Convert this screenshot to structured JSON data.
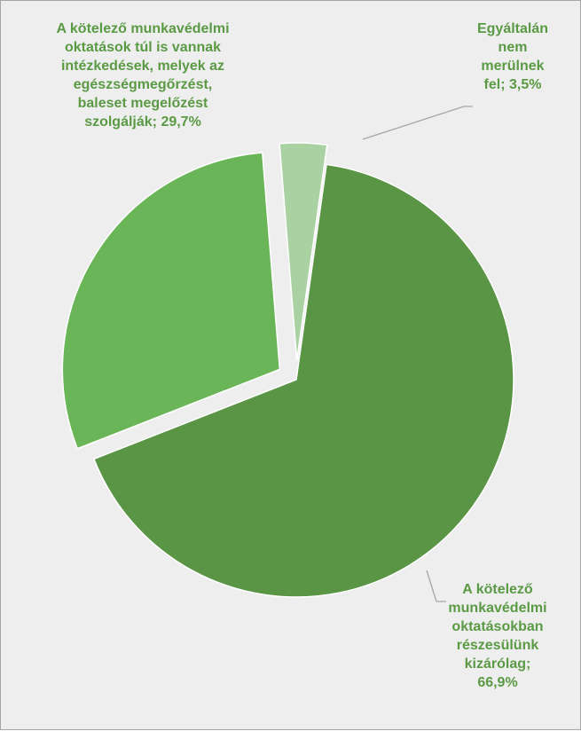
{
  "chart_data": {
    "type": "pie",
    "exploded": true,
    "slices": [
      {
        "label": "A kötelező munkavédelmi oktatásokban részesülünk kizárólag",
        "value": 66.9,
        "value_label": "66,9%",
        "color": "#5a9445",
        "label_lines": [
          "A kötelező",
          "munkavédelmi",
          "oktatásokban",
          "részesülünk",
          "kizárólag;",
          "66,9%"
        ]
      },
      {
        "label": "A kötelező munkavédelmi oktatások túl is vannak intézkedések, melyek az egészségmegőrzést, baleset megelőzést szolgálják",
        "value": 29.7,
        "value_label": "29,7%",
        "color": "#6ab558",
        "label_lines": [
          "A kötelező munkavédelmi",
          "oktatások túl is vannak",
          "intézkedések, melyek az",
          "egészségmegőrzést,",
          "baleset megelőzést",
          "szolgálják; 29,7%"
        ]
      },
      {
        "label": "Egyáltalán nem merülnek fel",
        "value": 3.5,
        "value_label": "3,5%",
        "color": "#a9d1a2",
        "label_lines": [
          "Egyáltalán",
          "nem",
          "merülnek",
          "fel; 3,5%"
        ]
      }
    ],
    "label_color": "#5b9a45",
    "legend": "none"
  }
}
